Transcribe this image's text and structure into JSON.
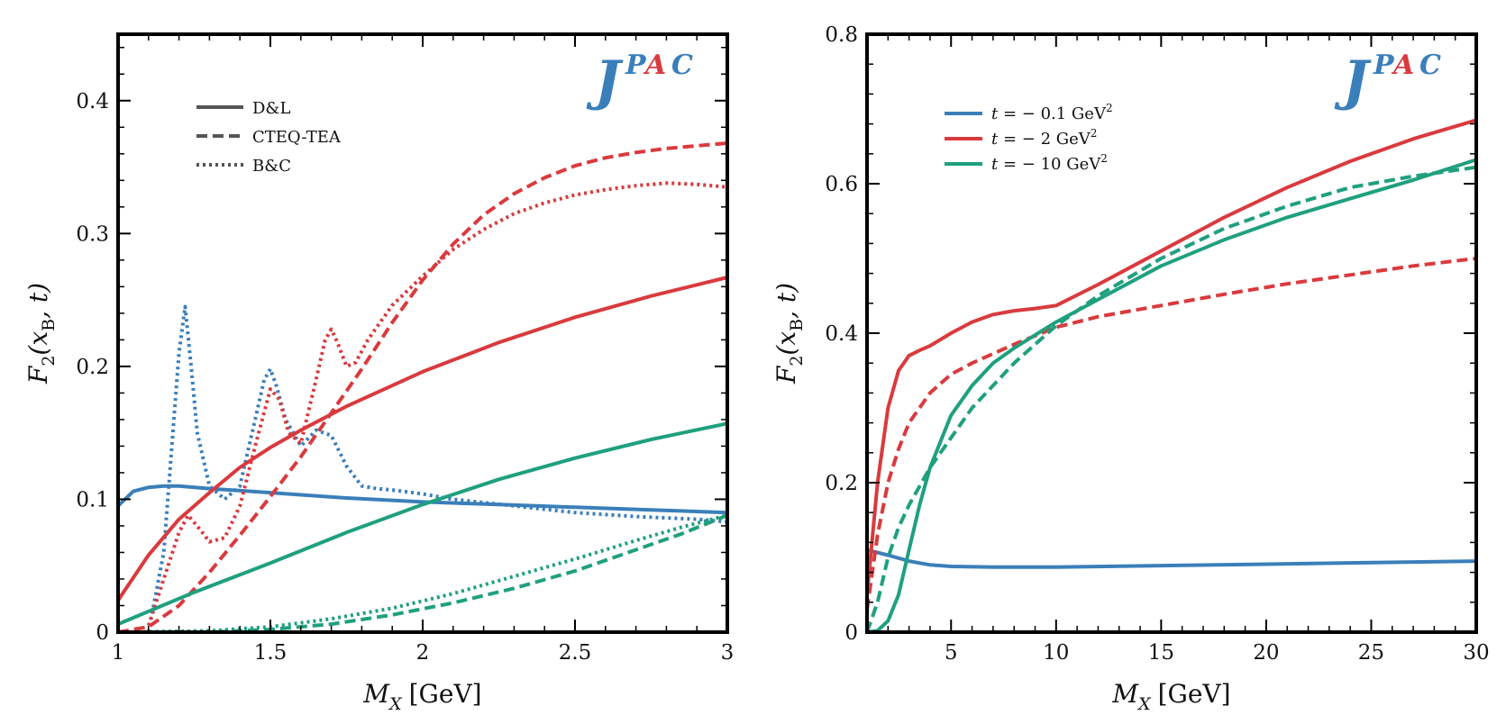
{
  "colors": {
    "blue": "#3a7fba",
    "red": "#d93a3e",
    "green": "#1fa07f",
    "frame": "#000000"
  },
  "chart_data": [
    {
      "type": "line",
      "xlabel_main": "M",
      "xlabel_sub": "X",
      "xlabel_unit": "[GeV]",
      "ylabel_main": "F",
      "ylabel_sub": "2",
      "ylabel_args_open": "(x",
      "ylabel_args_sub": "B",
      "ylabel_args_close": ", t)",
      "xlim": [
        1,
        3
      ],
      "ylim": [
        0,
        0.45
      ],
      "xticks": [
        1,
        1.5,
        2,
        2.5,
        3
      ],
      "xtick_labels": [
        "1",
        "1.5",
        "2",
        "2.5",
        "3"
      ],
      "yticks": [
        0,
        0.1,
        0.2,
        0.3,
        0.4
      ],
      "ytick_labels": [
        "0",
        "0.1",
        "0.2",
        "0.3",
        "0.4"
      ],
      "logo": {
        "big": "J",
        "sup_p": "P",
        "sup_a": "A",
        "sup_c": "C"
      },
      "legend": [
        {
          "label": "D&L",
          "style": "solid"
        },
        {
          "label": "CTEQ-TEA",
          "style": "dashed"
        },
        {
          "label": "B&C",
          "style": "dotted"
        }
      ],
      "series": [
        {
          "name": "blue D&L",
          "color": "blue",
          "style": "solid",
          "x": [
            1,
            1.05,
            1.1,
            1.15,
            1.2,
            1.3,
            1.5,
            1.75,
            2,
            2.25,
            2.5,
            2.75,
            3
          ],
          "y": [
            0.095,
            0.106,
            0.109,
            0.11,
            0.11,
            0.108,
            0.105,
            0.101,
            0.098,
            0.096,
            0.094,
            0.092,
            0.09
          ]
        },
        {
          "name": "blue B&C",
          "color": "blue",
          "style": "dotted",
          "x": [
            1.1,
            1.15,
            1.18,
            1.2,
            1.22,
            1.24,
            1.26,
            1.3,
            1.35,
            1.4,
            1.45,
            1.48,
            1.5,
            1.52,
            1.55,
            1.6,
            1.65,
            1.7,
            1.75,
            1.8,
            1.85,
            1.9,
            2,
            2.1,
            2.3,
            2.5,
            2.7,
            2.9,
            3
          ],
          "y": [
            0.0,
            0.06,
            0.15,
            0.21,
            0.245,
            0.2,
            0.15,
            0.11,
            0.1,
            0.11,
            0.16,
            0.19,
            0.198,
            0.185,
            0.16,
            0.14,
            0.152,
            0.148,
            0.125,
            0.11,
            0.108,
            0.107,
            0.104,
            0.1,
            0.095,
            0.09,
            0.087,
            0.085,
            0.083
          ]
        },
        {
          "name": "red D&L",
          "color": "red",
          "style": "solid",
          "x": [
            1,
            1.1,
            1.2,
            1.3,
            1.4,
            1.5,
            1.6,
            1.75,
            2,
            2.25,
            2.5,
            2.75,
            3
          ],
          "y": [
            0.024,
            0.058,
            0.085,
            0.105,
            0.124,
            0.139,
            0.152,
            0.17,
            0.196,
            0.218,
            0.237,
            0.253,
            0.267
          ]
        },
        {
          "name": "red CTEQ",
          "color": "red",
          "style": "dashed",
          "x": [
            1,
            1.1,
            1.2,
            1.3,
            1.4,
            1.5,
            1.6,
            1.7,
            1.8,
            1.9,
            2,
            2.1,
            2.2,
            2.3,
            2.4,
            2.5,
            2.6,
            2.7,
            2.8,
            2.9,
            3
          ],
          "y": [
            0,
            0.004,
            0.02,
            0.045,
            0.073,
            0.102,
            0.132,
            0.165,
            0.198,
            0.233,
            0.265,
            0.292,
            0.314,
            0.33,
            0.342,
            0.351,
            0.357,
            0.361,
            0.364,
            0.366,
            0.368
          ]
        },
        {
          "name": "red B&C",
          "color": "red",
          "style": "dotted",
          "x": [
            1.1,
            1.15,
            1.2,
            1.23,
            1.27,
            1.3,
            1.35,
            1.4,
            1.45,
            1.5,
            1.53,
            1.56,
            1.6,
            1.65,
            1.68,
            1.7,
            1.72,
            1.75,
            1.78,
            1.82,
            1.9,
            2,
            2.1,
            2.2,
            2.3,
            2.4,
            2.5,
            2.6,
            2.7,
            2.8,
            2.9,
            3
          ],
          "y": [
            0.005,
            0.04,
            0.075,
            0.088,
            0.077,
            0.068,
            0.071,
            0.095,
            0.14,
            0.183,
            0.175,
            0.15,
            0.142,
            0.19,
            0.22,
            0.228,
            0.218,
            0.2,
            0.203,
            0.22,
            0.246,
            0.268,
            0.288,
            0.303,
            0.315,
            0.323,
            0.329,
            0.333,
            0.336,
            0.338,
            0.337,
            0.335
          ]
        },
        {
          "name": "green D&L",
          "color": "green",
          "style": "solid",
          "x": [
            1,
            1.25,
            1.5,
            1.75,
            2,
            2.25,
            2.5,
            2.75,
            3
          ],
          "y": [
            0.006,
            0.03,
            0.052,
            0.075,
            0.096,
            0.115,
            0.131,
            0.145,
            0.157
          ]
        },
        {
          "name": "green CTEQ",
          "color": "green",
          "style": "dashed",
          "x": [
            1,
            1.3,
            1.5,
            1.7,
            1.9,
            2.1,
            2.3,
            2.5,
            2.7,
            2.85,
            3
          ],
          "y": [
            0,
            0.0,
            0.002,
            0.006,
            0.013,
            0.022,
            0.033,
            0.046,
            0.062,
            0.074,
            0.088
          ]
        },
        {
          "name": "green B&C",
          "color": "green",
          "style": "dotted",
          "x": [
            1,
            1.3,
            1.5,
            1.7,
            1.9,
            2.1,
            2.3,
            2.5,
            2.7,
            2.85,
            3
          ],
          "y": [
            0,
            0.001,
            0.004,
            0.01,
            0.018,
            0.029,
            0.042,
            0.055,
            0.069,
            0.079,
            0.088
          ]
        }
      ]
    },
    {
      "type": "line",
      "xlabel_main": "M",
      "xlabel_sub": "X",
      "xlabel_unit": "[GeV]",
      "ylabel_main": "F",
      "ylabel_sub": "2",
      "ylabel_args_open": "(x",
      "ylabel_args_sub": "B",
      "ylabel_args_close": ", t)",
      "xlim": [
        1,
        30
      ],
      "ylim": [
        0,
        0.8
      ],
      "xticks": [
        5,
        10,
        15,
        20,
        25,
        30
      ],
      "xtick_labels": [
        "5",
        "10",
        "15",
        "20",
        "25",
        "30"
      ],
      "yticks": [
        0,
        0.2,
        0.4,
        0.6,
        0.8
      ],
      "ytick_labels": [
        "0",
        "0.2",
        "0.4",
        "0.6",
        "0.8"
      ],
      "logo": {
        "big": "J",
        "sup_p": "P",
        "sup_a": "A",
        "sup_c": "C"
      },
      "legend": [
        {
          "t": "t",
          "eq": " = − 0.1 GeV",
          "sup": "2",
          "color": "blue"
        },
        {
          "t": "t",
          "eq": " = − 2 GeV",
          "sup": "2",
          "color": "red"
        },
        {
          "t": "t",
          "eq": " = − 10 GeV",
          "sup": "2",
          "color": "green"
        }
      ],
      "series": [
        {
          "name": "blue",
          "color": "blue",
          "style": "solid",
          "x": [
            1,
            2,
            3,
            4,
            5,
            7,
            10,
            15,
            20,
            25,
            30
          ],
          "y": [
            0.11,
            0.103,
            0.095,
            0.09,
            0.088,
            0.087,
            0.087,
            0.089,
            0.091,
            0.093,
            0.095
          ]
        },
        {
          "name": "red solid",
          "color": "red",
          "style": "solid",
          "x": [
            1,
            1.5,
            2,
            2.5,
            3,
            3.5,
            4,
            5,
            6,
            7,
            8,
            9,
            10,
            12,
            15,
            18,
            21,
            24,
            27,
            30
          ],
          "y": [
            0.05,
            0.2,
            0.3,
            0.35,
            0.37,
            0.377,
            0.383,
            0.4,
            0.415,
            0.425,
            0.43,
            0.433,
            0.437,
            0.465,
            0.51,
            0.555,
            0.595,
            0.63,
            0.66,
            0.685
          ]
        },
        {
          "name": "red dashed",
          "color": "red",
          "style": "dashed",
          "x": [
            1,
            1.5,
            2,
            2.5,
            3,
            4,
            5,
            6,
            8,
            10,
            12,
            15,
            18,
            21,
            24,
            27,
            30
          ],
          "y": [
            0.03,
            0.13,
            0.2,
            0.245,
            0.28,
            0.32,
            0.345,
            0.36,
            0.385,
            0.408,
            0.422,
            0.437,
            0.452,
            0.466,
            0.478,
            0.49,
            0.5
          ]
        },
        {
          "name": "green solid",
          "color": "green",
          "style": "solid",
          "x": [
            1,
            1.5,
            2,
            2.5,
            3,
            3.5,
            4,
            5,
            6,
            7,
            8,
            10,
            12,
            15,
            18,
            21,
            24,
            27,
            30
          ],
          "y": [
            0,
            0.002,
            0.015,
            0.05,
            0.11,
            0.17,
            0.22,
            0.29,
            0.33,
            0.36,
            0.38,
            0.415,
            0.445,
            0.49,
            0.525,
            0.555,
            0.58,
            0.605,
            0.632
          ]
        },
        {
          "name": "green dashed",
          "color": "green",
          "style": "dashed",
          "x": [
            1,
            1.5,
            2,
            2.5,
            3,
            4,
            5,
            6,
            8,
            10,
            12,
            15,
            18,
            21,
            24,
            27,
            30
          ],
          "y": [
            0,
            0.04,
            0.1,
            0.14,
            0.17,
            0.22,
            0.26,
            0.3,
            0.36,
            0.41,
            0.45,
            0.5,
            0.54,
            0.57,
            0.595,
            0.61,
            0.622
          ]
        }
      ]
    }
  ]
}
